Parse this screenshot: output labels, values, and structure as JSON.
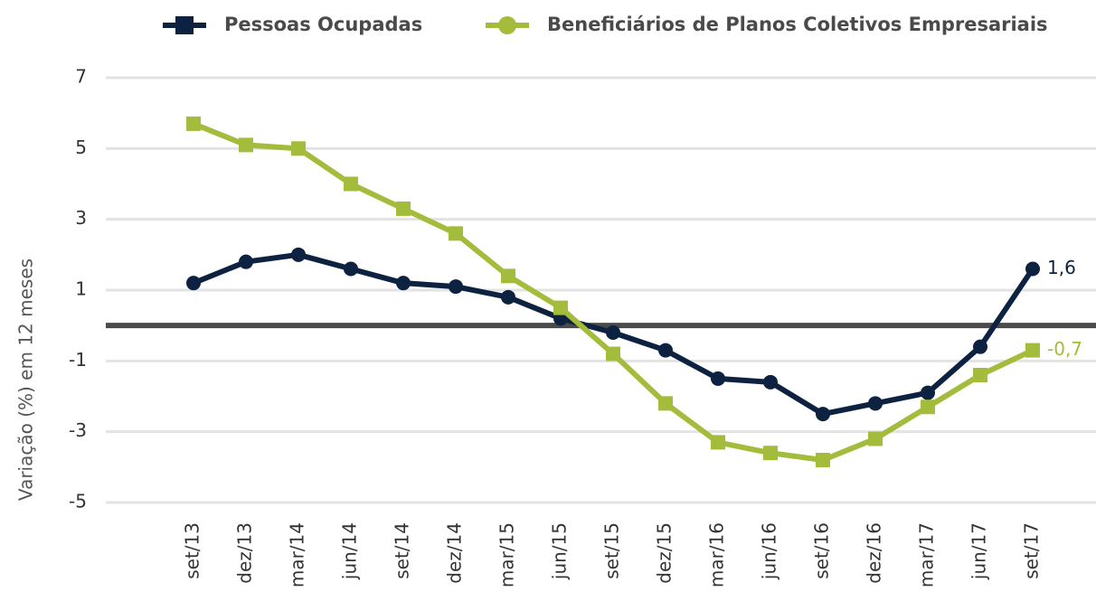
{
  "chart_data": {
    "type": "line",
    "y_label": "Variação (%) em 12 meses",
    "categories": [
      "set/13",
      "dez/13",
      "mar/14",
      "jun/14",
      "set/14",
      "dez/14",
      "mar/15",
      "jun/15",
      "set/15",
      "dez/15",
      "mar/16",
      "jun/16",
      "set/16",
      "dez/16",
      "mar/17",
      "jun/17",
      "set/17"
    ],
    "series": [
      {
        "name": "Pessoas Ocupadas",
        "color": "#0d2240",
        "marker": "circle",
        "legend_marker": "square",
        "values": [
          1.2,
          1.8,
          2.0,
          1.6,
          1.2,
          1.1,
          0.8,
          0.2,
          -0.2,
          -0.7,
          -1.5,
          -1.6,
          -2.5,
          -2.2,
          -1.9,
          -0.6,
          1.6
        ],
        "value_labels": [
          null,
          null,
          null,
          null,
          null,
          null,
          null,
          null,
          null,
          null,
          null,
          null,
          null,
          null,
          null,
          null,
          "1,6"
        ]
      },
      {
        "name": "Beneficiários de Planos Coletivos Empresariais",
        "color": "#a4bc3c",
        "marker": "square",
        "legend_marker": "circle",
        "values": [
          5.7,
          5.1,
          5.0,
          4.0,
          3.3,
          2.6,
          1.4,
          0.5,
          -0.8,
          -2.2,
          -3.3,
          -3.6,
          -3.8,
          -3.2,
          -2.3,
          -1.4,
          -0.7
        ],
        "value_labels": [
          null,
          null,
          null,
          null,
          null,
          null,
          null,
          null,
          null,
          null,
          null,
          null,
          null,
          null,
          null,
          null,
          "-0,7"
        ]
      }
    ],
    "ylim": [
      -5,
      7
    ],
    "yticks": [
      7,
      5,
      3,
      1,
      -1,
      -3,
      -5
    ],
    "grid": true,
    "zero_line": true,
    "legend": "top"
  }
}
